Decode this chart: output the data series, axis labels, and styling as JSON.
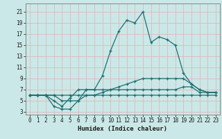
{
  "xlabel": "Humidex (Indice chaleur)",
  "background_color": "#cbe8e8",
  "grid_color": "#ddb8b8",
  "line_color": "#1a7070",
  "xlim": [
    -0.5,
    23.5
  ],
  "ylim": [
    2.5,
    22.5
  ],
  "xticks": [
    0,
    1,
    2,
    3,
    4,
    5,
    6,
    7,
    8,
    9,
    10,
    11,
    12,
    13,
    14,
    15,
    16,
    17,
    18,
    19,
    20,
    21,
    22,
    23
  ],
  "yticks": [
    3,
    5,
    7,
    9,
    11,
    13,
    15,
    17,
    19,
    21
  ],
  "series": [
    {
      "x": [
        0,
        1,
        2,
        3,
        4,
        5,
        6,
        7,
        8,
        9,
        10,
        11,
        12,
        13,
        14,
        15,
        16,
        17,
        18,
        19,
        20,
        21,
        22,
        23
      ],
      "y": [
        6,
        6,
        6,
        6,
        5,
        5,
        5,
        7,
        7,
        9.5,
        14,
        17.5,
        19.5,
        19,
        21,
        15.5,
        16.5,
        16,
        15,
        10,
        8,
        7,
        6.5,
        6.5
      ]
    },
    {
      "x": [
        0,
        1,
        2,
        3,
        4,
        5,
        6,
        7,
        8,
        9,
        10,
        11,
        12,
        13,
        14,
        15,
        16,
        17,
        18,
        19,
        20,
        21,
        22,
        23
      ],
      "y": [
        6,
        6,
        6,
        6,
        6,
        6,
        6,
        6,
        6,
        6.5,
        7,
        7.5,
        8,
        8.5,
        9,
        9,
        9,
        9,
        9,
        9,
        8,
        7,
        6.5,
        6.5
      ]
    },
    {
      "x": [
        0,
        1,
        2,
        3,
        4,
        5,
        6,
        7,
        8,
        9,
        10,
        11,
        12,
        13,
        14,
        15,
        16,
        17,
        18,
        19,
        20,
        21,
        22,
        23
      ],
      "y": [
        6,
        6,
        6,
        5,
        4,
        5.5,
        7,
        7,
        7,
        7,
        7,
        7,
        7,
        7,
        7,
        7,
        7,
        7,
        7,
        7.5,
        7.5,
        6.5,
        6.5,
        6.5
      ]
    },
    {
      "x": [
        0,
        1,
        2,
        3,
        4,
        5,
        6,
        7,
        8,
        9,
        10,
        11,
        12,
        13,
        14,
        15,
        16,
        17,
        18,
        19,
        20,
        21,
        22,
        23
      ],
      "y": [
        6,
        6,
        6,
        4,
        3.5,
        3.5,
        5,
        6,
        6,
        6,
        6,
        6,
        6,
        6,
        6,
        6,
        6,
        6,
        6,
        6,
        6,
        6,
        6,
        6
      ]
    }
  ]
}
